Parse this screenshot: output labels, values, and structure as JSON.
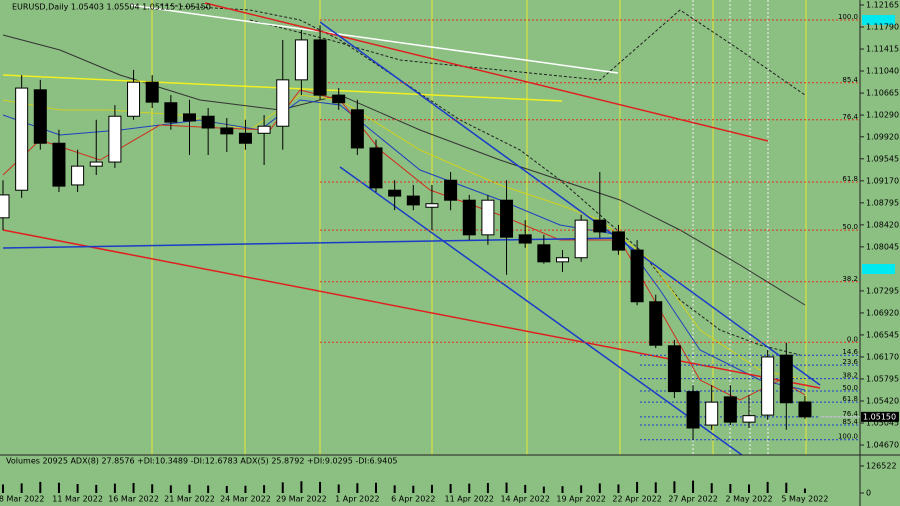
{
  "chart_data": {
    "type": "candlestick",
    "title": "EURUSD,Daily 1.05403 1.05504 1.05115 1.05150",
    "background": "#8cbf82",
    "up_color": "#ffffff",
    "down_color": "#000000",
    "categories": [
      null,
      "8 Mar 2022",
      null,
      null,
      "11 Mar 2022",
      null,
      null,
      "16 Mar 2022",
      null,
      null,
      "21 Mar 2022",
      null,
      null,
      "24 Mar 2022",
      null,
      null,
      "29 Mar 2022",
      null,
      null,
      "1 Apr 2022",
      null,
      null,
      "6 Apr 2022",
      null,
      null,
      "11 Apr 2022",
      null,
      null,
      "14 Apr 2022",
      null,
      null,
      "19 Apr 2022",
      null,
      null,
      "22 Apr 2022",
      null,
      null,
      "27 Apr 2022",
      null,
      null,
      "2 May 2022",
      null,
      null,
      "5 May 2022"
    ],
    "open": [
      1.0854,
      1.0901,
      1.1072,
      1.0981,
      1.091,
      1.0942,
      1.0949,
      1.1027,
      1.1085,
      1.105,
      1.1031,
      1.1027,
      1.1007,
      1.0998,
      1.0998,
      1.101,
      1.1089,
      1.1157,
      1.1063,
      1.1038,
      1.0973,
      1.0901,
      1.0891,
      1.0872,
      1.0918,
      1.0884,
      1.0825,
      1.0884,
      1.0825,
      1.0808,
      1.0779,
      1.0786,
      1.085,
      1.083,
      1.0799,
      1.0711,
      1.0636,
      1.0558,
      1.0501,
      1.0549,
      1.0506,
      1.0518,
      1.062,
      1.05403
    ],
    "high": [
      1.0918,
      1.1097,
      1.1089,
      1.1004,
      1.097,
      1.1021,
      1.1046,
      1.1106,
      1.1097,
      1.1063,
      1.1055,
      1.1041,
      1.1024,
      1.1021,
      1.1029,
      1.1157,
      1.1174,
      1.1182,
      1.1075,
      1.1055,
      1.0987,
      1.0918,
      1.091,
      1.091,
      1.0932,
      1.0893,
      1.0893,
      1.0918,
      1.085,
      1.0825,
      1.0799,
      1.0859,
      1.0932,
      1.0842,
      1.0816,
      1.0723,
      1.0646,
      1.0569,
      1.0569,
      1.0569,
      1.0552,
      1.0629,
      1.0641,
      1.05504
    ],
    "low": [
      1.0833,
      1.0888,
      1.097,
      1.0898,
      1.0898,
      1.0927,
      1.0939,
      1.1021,
      1.1041,
      1.1004,
      1.0961,
      1.0961,
      1.0966,
      1.097,
      1.0944,
      1.097,
      1.1063,
      1.1055,
      1.1038,
      1.0961,
      1.0898,
      1.0867,
      1.0867,
      1.0833,
      1.0867,
      1.0816,
      1.0808,
      1.0757,
      1.0803,
      1.0776,
      1.0762,
      1.0779,
      1.082,
      1.0791,
      1.0705,
      1.0632,
      1.0547,
      1.0476,
      1.0493,
      1.0501,
      1.0496,
      1.051,
      1.0493,
      1.05115
    ],
    "close": [
      1.0893,
      1.1075,
      1.0981,
      1.0908,
      1.0942,
      1.0949,
      1.1027,
      1.1085,
      1.1051,
      1.1017,
      1.1019,
      1.1007,
      1.0997,
      1.0981,
      1.101,
      1.1089,
      1.1157,
      1.1063,
      1.105,
      1.0973,
      1.0905,
      1.0891,
      1.0876,
      1.0878,
      1.0884,
      1.0825,
      1.0884,
      1.0821,
      1.0811,
      1.0779,
      1.0786,
      1.085,
      1.083,
      1.0799,
      1.0711,
      1.0637,
      1.0558,
      1.0496,
      1.054,
      1.0506,
      1.0517,
      1.0617,
      1.0539,
      1.0515
    ],
    "last_label": "1.05150",
    "ylim": [
      1.045,
      1.1225
    ],
    "yticks": [
      {
        "value": 1.12165,
        "label": "1.12165"
      },
      {
        "value": 1.1179,
        "label": "1.11790"
      },
      {
        "value": 1.11415,
        "label": "1.11415"
      },
      {
        "value": 1.1104,
        "label": "1.11040"
      },
      {
        "value": 1.10665,
        "label": "1.10665"
      },
      {
        "value": 1.1029,
        "label": "1.10290"
      },
      {
        "value": 1.0992,
        "label": "1.09920"
      },
      {
        "value": 1.09545,
        "label": "1.09545"
      },
      {
        "value": 1.0917,
        "label": "1.09170"
      },
      {
        "value": 1.08795,
        "label": "1.08795"
      },
      {
        "value": 1.0842,
        "label": "1.08420"
      },
      {
        "value": 1.08045,
        "label": "1.08045"
      },
      {
        "value": 1.07295,
        "label": "1.07295"
      },
      {
        "value": 1.0692,
        "label": "1.06920"
      },
      {
        "value": 1.06545,
        "label": "1.06545"
      },
      {
        "value": 1.0617,
        "label": "1.06170"
      },
      {
        "value": 1.05795,
        "label": "1.05795"
      },
      {
        "value": 1.0542,
        "label": "1.05420"
      },
      {
        "value": 1.05045,
        "label": "1.05045"
      },
      {
        "value": 1.0467,
        "label": "1.04670"
      }
    ],
    "levels": [
      {
        "label": "100.0",
        "value": 1.1191,
        "color": "#e03020"
      },
      {
        "label": "85.4",
        "value": 1.1084,
        "color": "#e03020"
      },
      {
        "label": "76.4",
        "value": 1.1021,
        "color": "#e03020"
      },
      {
        "label": "61.8",
        "value": 1.0915,
        "color": "#e03020"
      },
      {
        "label": "50.0",
        "value": 1.0833,
        "color": "#e03020"
      },
      {
        "label": "38.2",
        "value": 1.0745,
        "color": "#e03020"
      },
      {
        "label": "0.0",
        "value": 1.0642,
        "color": "#e03020"
      },
      {
        "label": "14.6",
        "value": 1.062,
        "color": "#1a3cc8"
      },
      {
        "label": "23.6",
        "value": 1.0603,
        "color": "#1a3cc8"
      },
      {
        "label": "38.2",
        "value": 1.058,
        "color": "#1a3cc8"
      },
      {
        "label": "50.0",
        "value": 1.0559,
        "color": "#1a3cc8"
      },
      {
        "label": "61.8",
        "value": 1.054,
        "color": "#1a3cc8"
      },
      {
        "label": "76.4",
        "value": 1.0515,
        "color": "#1a3cc8"
      },
      {
        "label": "85.4",
        "value": 1.0501,
        "color": "#1a3cc8"
      },
      {
        "label": "100.0",
        "value": 1.0476,
        "color": "#1a3cc8"
      }
    ],
    "volume": {
      "title": "Volumes 20925  ADX(8) 27.8576 +DI:10.3489 -DI:12.6783  ADX(5) 25.8792 +DI:9.0295 -DI:6.9405",
      "color": "#000000",
      "values": [
        40000,
        45000,
        52000,
        48000,
        42000,
        38000,
        44000,
        47000,
        41000,
        36000,
        39000,
        35000,
        33000,
        34000,
        37000,
        50000,
        55000,
        52000,
        40000,
        46000,
        48000,
        36000,
        34000,
        38000,
        42000,
        44000,
        47000,
        49000,
        38000,
        30000,
        32000,
        36000,
        45000,
        40000,
        52000,
        50000,
        55000,
        58000,
        46000,
        42000,
        40000,
        52000,
        48000,
        20925
      ],
      "ylim": [
        0,
        126522
      ],
      "yticks": [
        0,
        126522
      ]
    }
  }
}
